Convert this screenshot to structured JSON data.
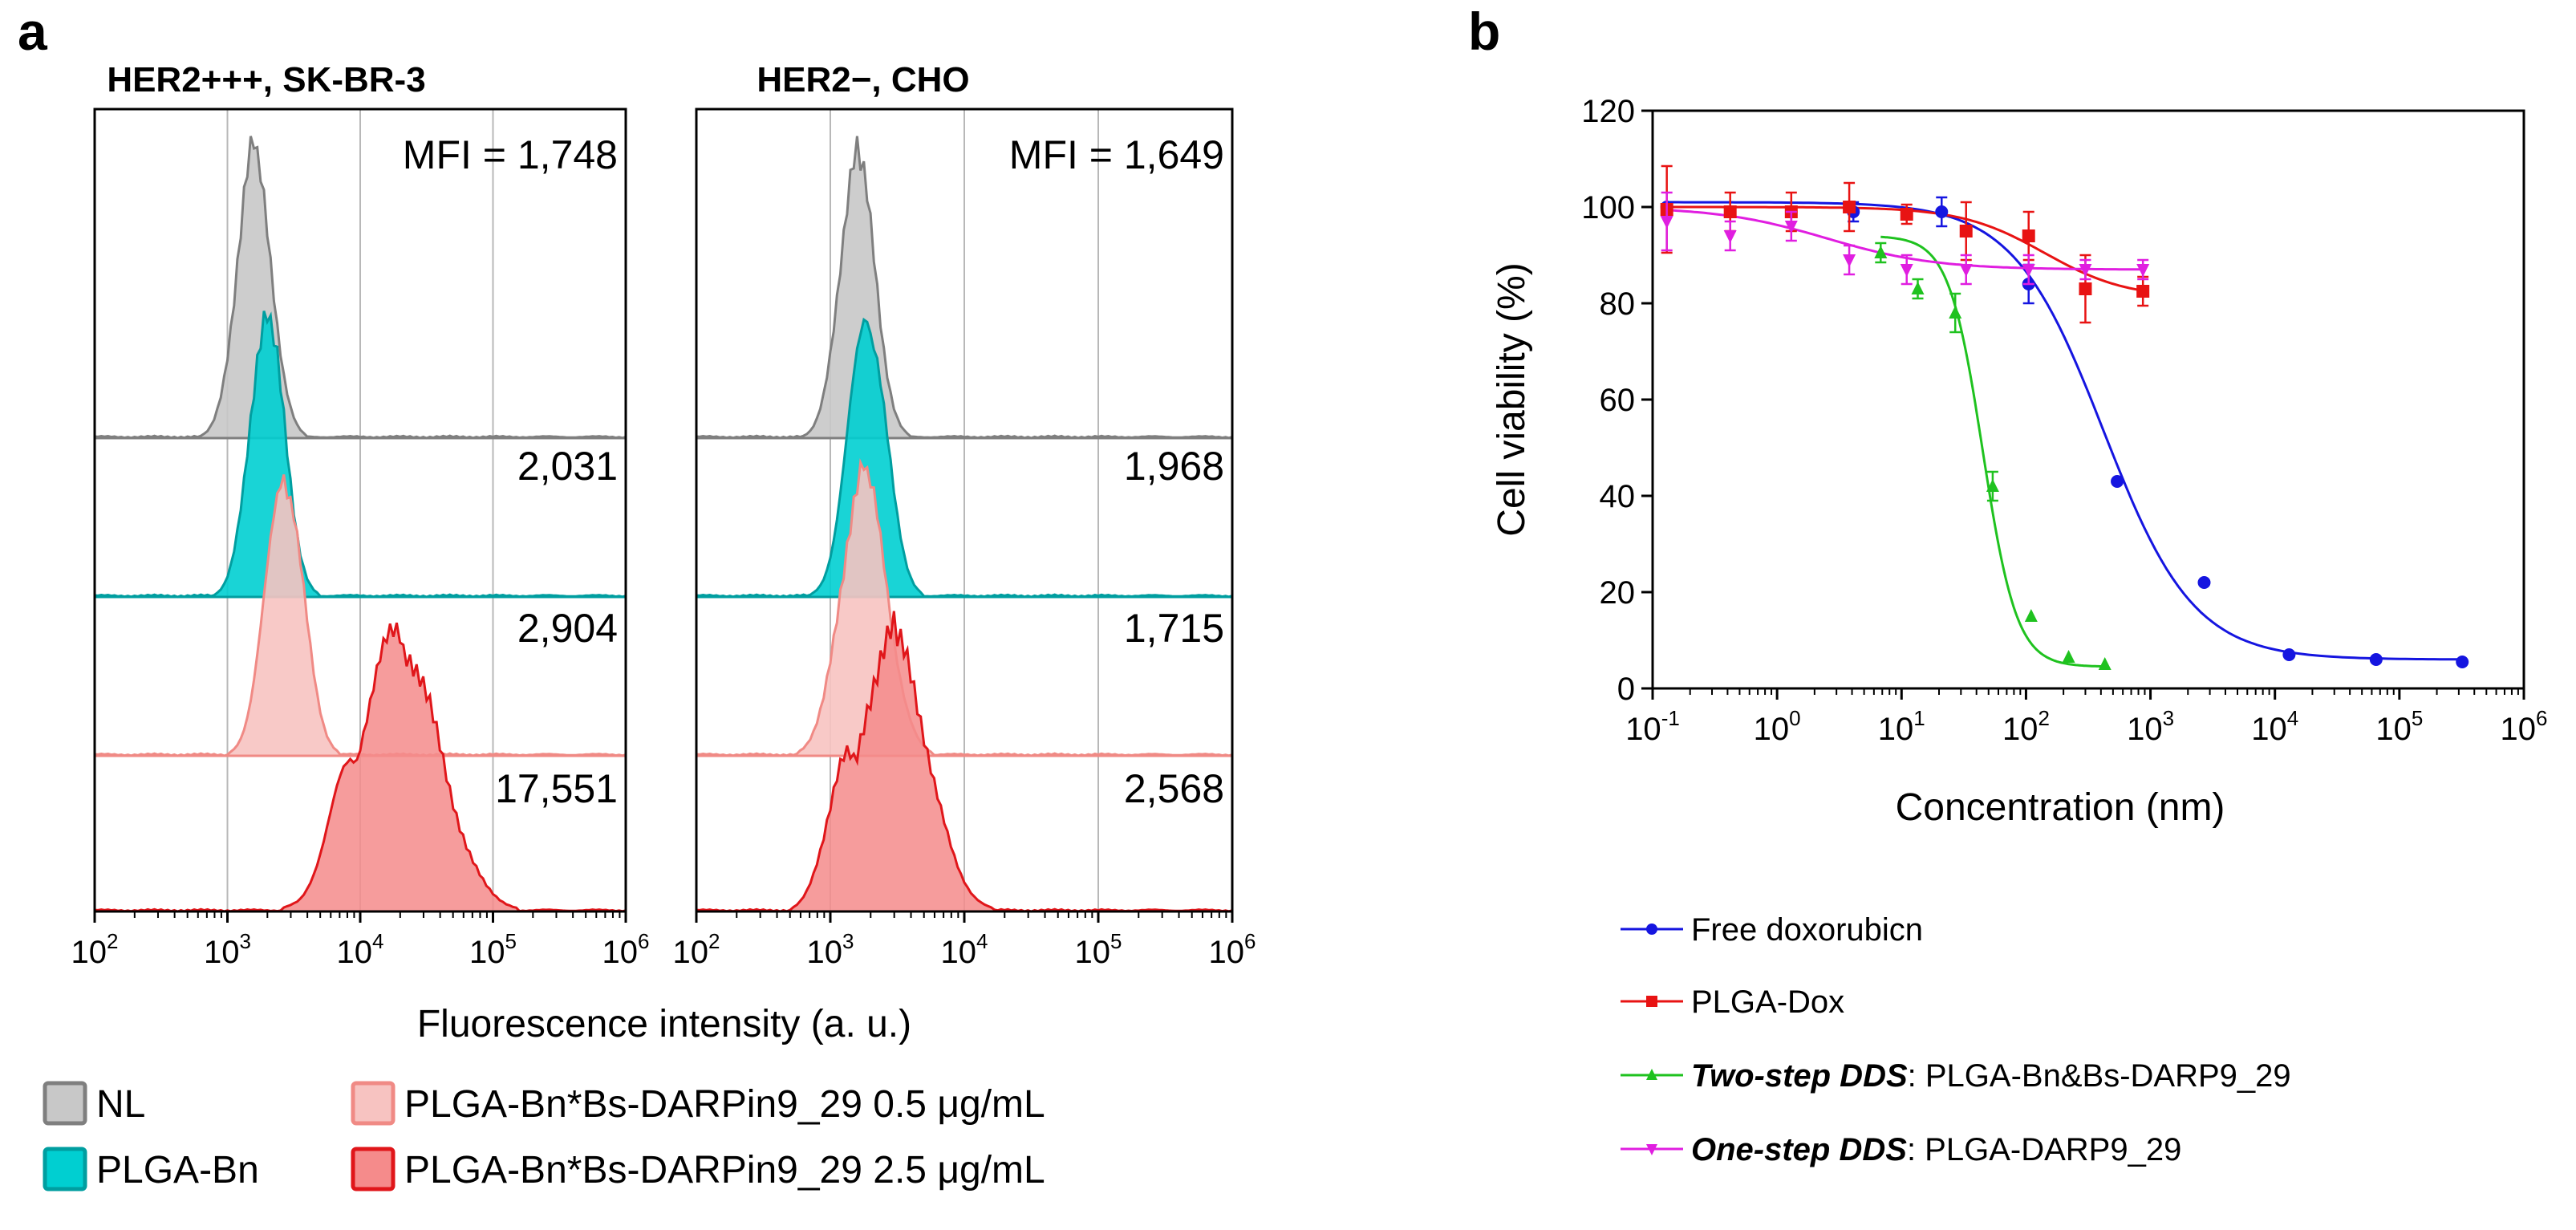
{
  "panel_a": {
    "letter": "a",
    "xlabel": "Fluorescence intensity (a. u.)",
    "x_ticks": [
      {
        "base": "10",
        "exp": "2"
      },
      {
        "base": "10",
        "exp": "3"
      },
      {
        "base": "10",
        "exp": "4"
      },
      {
        "base": "10",
        "exp": "5"
      },
      {
        "base": "10",
        "exp": "6"
      }
    ],
    "mfi_prefix": "MFI =",
    "legend": [
      {
        "label": "NL",
        "fill": "#c8c8c8",
        "stroke": "#7f7f7f"
      },
      {
        "label": "PLGA-Bn",
        "fill": "#00cfd1",
        "stroke": "#009ea0"
      },
      {
        "label": "PLGA-Bn*Bs-DARPin9_29 0.5 μg/mL",
        "fill": "#f7c3c1",
        "stroke": "#f08a85"
      },
      {
        "label": "PLGA-Bn*Bs-DARPin9_29 2.5 μg/mL",
        "fill": "#f58b8b",
        "stroke": "#e0161a"
      }
    ]
  },
  "chart_data": [
    {
      "type": "area",
      "title": "HER2+++, SK-BR-3",
      "xlabel": "Fluorescence intensity (a. u.)",
      "xscale": "log",
      "xlim": [
        100,
        1000000
      ],
      "series": [
        {
          "name": "NL",
          "mfi": "1,748",
          "peak": 1600,
          "spread": 0.13
        },
        {
          "name": "PLGA-Bn",
          "mfi": "2,031",
          "peak": 2000,
          "spread": 0.13
        },
        {
          "name": "PLGA-Bn*Bs-DARPin9_29 0.5 μg/mL",
          "mfi": "2,904",
          "peak": 2700,
          "spread": 0.14
        },
        {
          "name": "PLGA-Bn*Bs-DARPin9_29 2.5 μg/mL",
          "mfi": "17,551",
          "peak": 20000,
          "spread": 0.3
        }
      ]
    },
    {
      "type": "area",
      "title": "HER2−, CHO",
      "xlabel": "Fluorescence intensity (a. u.)",
      "xscale": "log",
      "xlim": [
        100,
        1000000
      ],
      "series": [
        {
          "name": "NL",
          "mfi": "1,649",
          "peak": 1600,
          "spread": 0.13
        },
        {
          "name": "PLGA-Bn",
          "mfi": "1,968",
          "peak": 1900,
          "spread": 0.14
        },
        {
          "name": "PLGA-Bn*Bs-DARPin9_29 0.5 μg/mL",
          "mfi": "1,715",
          "peak": 1800,
          "spread": 0.17
        },
        {
          "name": "PLGA-Bn*Bs-DARPin9_29 2.5 μg/mL",
          "mfi": "2,568",
          "peak": 3000,
          "spread": 0.25
        }
      ]
    },
    {
      "type": "scatter",
      "title": "",
      "xlabel": "Concentration (nm)",
      "ylabel": "Cell viability (%)",
      "xscale": "log",
      "xlim": [
        0.1,
        1000000
      ],
      "ylim": [
        0,
        120
      ],
      "y_ticks": [
        "0",
        "20",
        "40",
        "60",
        "80",
        "100",
        "120"
      ],
      "x_ticks": [
        {
          "base": "10",
          "exp": "-1"
        },
        {
          "base": "10",
          "exp": "0"
        },
        {
          "base": "10",
          "exp": "1"
        },
        {
          "base": "10",
          "exp": "2"
        },
        {
          "base": "10",
          "exp": "3"
        },
        {
          "base": "10",
          "exp": "4"
        },
        {
          "base": "10",
          "exp": "5"
        },
        {
          "base": "10",
          "exp": "6"
        }
      ],
      "series": [
        {
          "name": "Free doxorubicn",
          "color": "#1515e0",
          "marker": "circle",
          "points": [
            [
              0.13,
              100
            ],
            [
              4.1,
              99
            ],
            [
              21,
              99
            ],
            [
              105,
              84
            ],
            [
              540,
              43
            ],
            [
              2700,
              22
            ],
            [
              13000,
              7
            ],
            [
              65000,
              6
            ],
            [
              320000,
              5.5
            ]
          ],
          "errors": [
            0,
            2,
            3,
            4,
            0,
            0,
            0,
            0,
            0
          ],
          "fit": {
            "top": 101,
            "bottom": 6,
            "ic50": 420,
            "hill": 1.2
          }
        },
        {
          "name": "PLGA-Dox",
          "color": "#e81313",
          "marker": "square",
          "points": [
            [
              0.13,
              99.5
            ],
            [
              0.42,
              99
            ],
            [
              1.3,
              99
            ],
            [
              3.8,
              100
            ],
            [
              11,
              98.5
            ],
            [
              33,
              95
            ],
            [
              105,
              94
            ],
            [
              300,
              83
            ],
            [
              870,
              82.5
            ]
          ],
          "errors": [
            9,
            4,
            4,
            5,
            2,
            6,
            5,
            7,
            3
          ],
          "fit": {
            "top": 100,
            "bottom": 81,
            "ic50": 140,
            "hill": 1.3
          }
        },
        {
          "name": "Two-step DDS",
          "color": "#1fc21f",
          "marker": "triangle-up",
          "points": [
            [
              6.8,
              90.5
            ],
            [
              13.5,
              83
            ],
            [
              27,
              78
            ],
            [
              54,
              42
            ],
            [
              110,
              15
            ],
            [
              220,
              6.5
            ],
            [
              430,
              5
            ]
          ],
          "errors": [
            2,
            2,
            4,
            3,
            0,
            0,
            0
          ],
          "fit": {
            "top": 94,
            "bottom": 4.5,
            "ic50": 45,
            "hill": 3.2
          }
        },
        {
          "name": "One-step DDS",
          "color": "#e01ee0",
          "marker": "triangle-down",
          "points": [
            [
              0.13,
              97
            ],
            [
              0.42,
              94
            ],
            [
              1.3,
              96
            ],
            [
              3.8,
              89
            ],
            [
              11,
              87
            ],
            [
              33,
              87
            ],
            [
              105,
              87
            ],
            [
              300,
              87
            ],
            [
              870,
              87
            ]
          ],
          "errors": [
            6,
            3,
            3,
            3,
            3,
            3,
            3,
            2,
            2
          ],
          "fit": {
            "top": 100,
            "bottom": 87,
            "ic50": 2.5,
            "hill": 1.0
          }
        }
      ]
    }
  ],
  "panel_b": {
    "letter": "b",
    "legend": [
      {
        "bold": "",
        "rest": "Free doxorubicn"
      },
      {
        "bold": "",
        "rest": "PLGA-Dox"
      },
      {
        "bold": "Two-step DDS",
        "rest": ": PLGA-Bn&Bs-DARP9_29"
      },
      {
        "bold": "One-step DDS",
        "rest": ": PLGA-DARP9_29"
      }
    ]
  }
}
